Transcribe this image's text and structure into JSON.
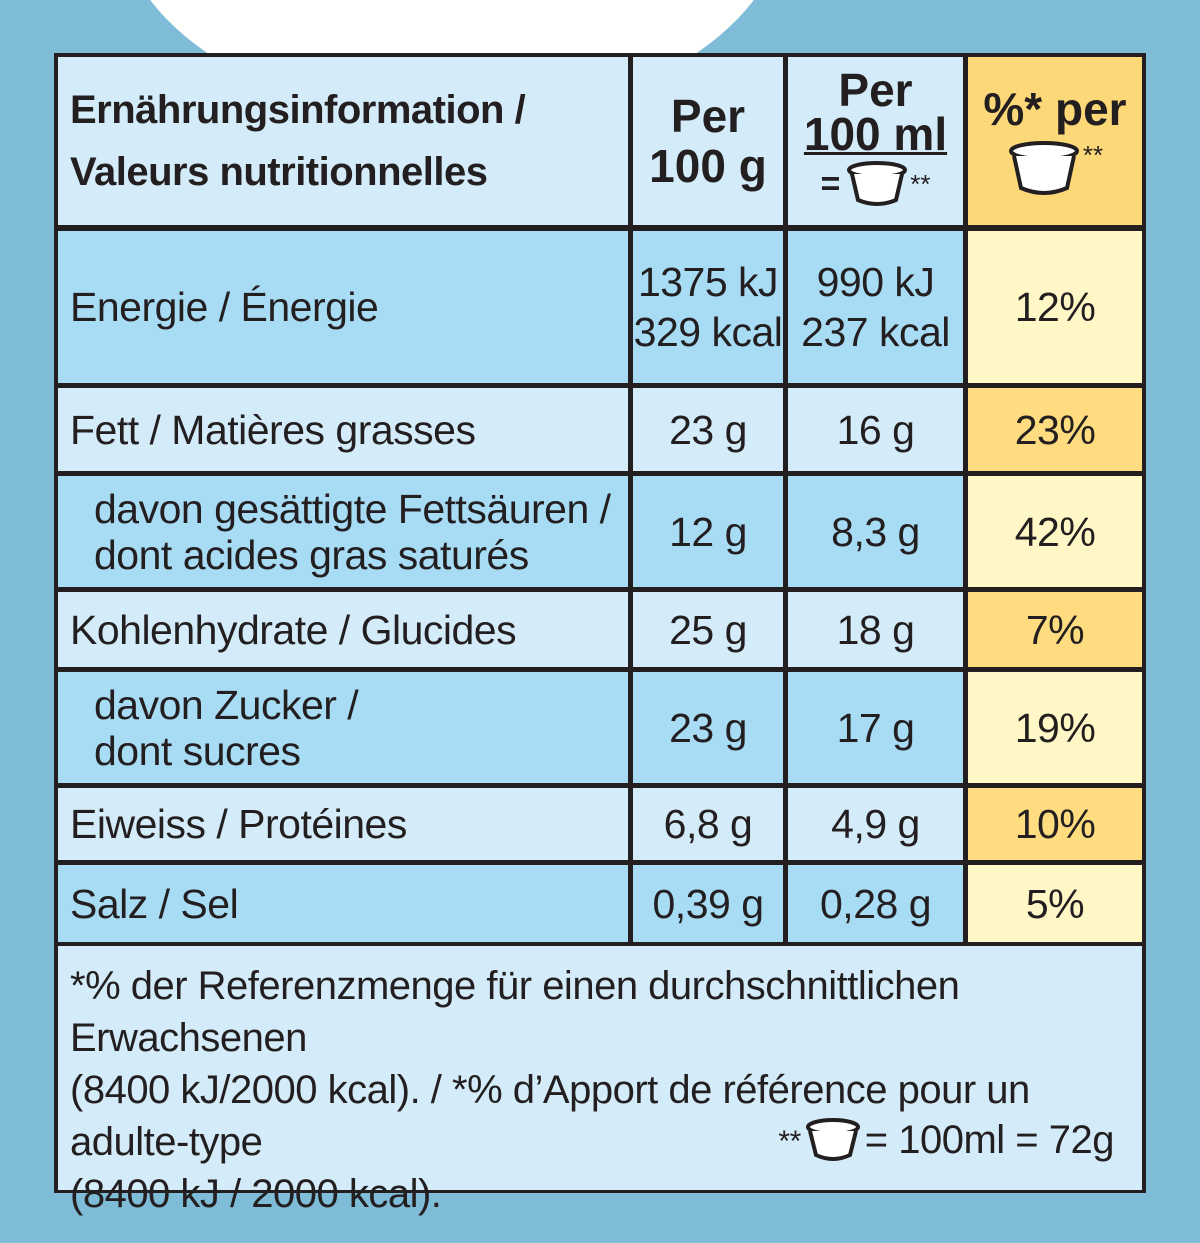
{
  "header": {
    "label_line1": "Ernährungsinformation /",
    "label_line2": "Valeurs nutritionnelles",
    "col1_line1": "Per",
    "col1_line2": "100 g",
    "col2_line1": "Per",
    "col2_line2": "100 ml",
    "col2_eq": "=",
    "col2_stars": "**",
    "col3_line1": "%* per",
    "col3_stars": "**"
  },
  "rows": [
    {
      "label": [
        "Energie / Énergie"
      ],
      "per100g": [
        "1375 kJ",
        "329 kcal"
      ],
      "per100ml": [
        "990 kJ",
        "237 kcal"
      ],
      "pct": "12%"
    },
    {
      "label": [
        "Fett / Matières grasses"
      ],
      "per100g": [
        "23 g"
      ],
      "per100ml": [
        "16 g"
      ],
      "pct": "23%"
    },
    {
      "label": [
        "davon gesättigte Fettsäuren /",
        "dont acides gras saturés"
      ],
      "per100g": [
        "12 g"
      ],
      "per100ml": [
        "8,3 g"
      ],
      "pct": "42%"
    },
    {
      "label": [
        "Kohlenhydrate / Glucides"
      ],
      "per100g": [
        "25 g"
      ],
      "per100ml": [
        "18 g"
      ],
      "pct": "7%"
    },
    {
      "label": [
        "davon Zucker /",
        "dont sucres"
      ],
      "per100g": [
        "23 g"
      ],
      "per100ml": [
        "17 g"
      ],
      "pct": "19%"
    },
    {
      "label": [
        "Eiweiss / Protéines"
      ],
      "per100g": [
        "6,8 g"
      ],
      "per100ml": [
        "4,9 g"
      ],
      "pct": "10%"
    },
    {
      "label": [
        "Salz / Sel"
      ],
      "per100g": [
        "0,39 g"
      ],
      "per100ml": [
        "0,28 g"
      ],
      "pct": "5%"
    }
  ],
  "footnote": {
    "line1": "*% der Referenzmenge für einen durchschnittlichen Erwachsenen",
    "line2": "(8400 kJ/2000 kcal). / *% d’Apport de référence pour un adulte-type",
    "line3": "(8400 kJ / 2000 kcal).",
    "portion_stars": "**",
    "portion_text": "= 100ml = 72g"
  },
  "colors": {
    "background": "#7fbcd8",
    "light_blue": "#d4ecf9",
    "mid_blue": "#a8dcf5",
    "yellow_dark": "#fedc7f",
    "yellow_light": "#fff7c6",
    "border": "#231f20"
  },
  "icons": [
    "ice-cream-tub-icon"
  ]
}
